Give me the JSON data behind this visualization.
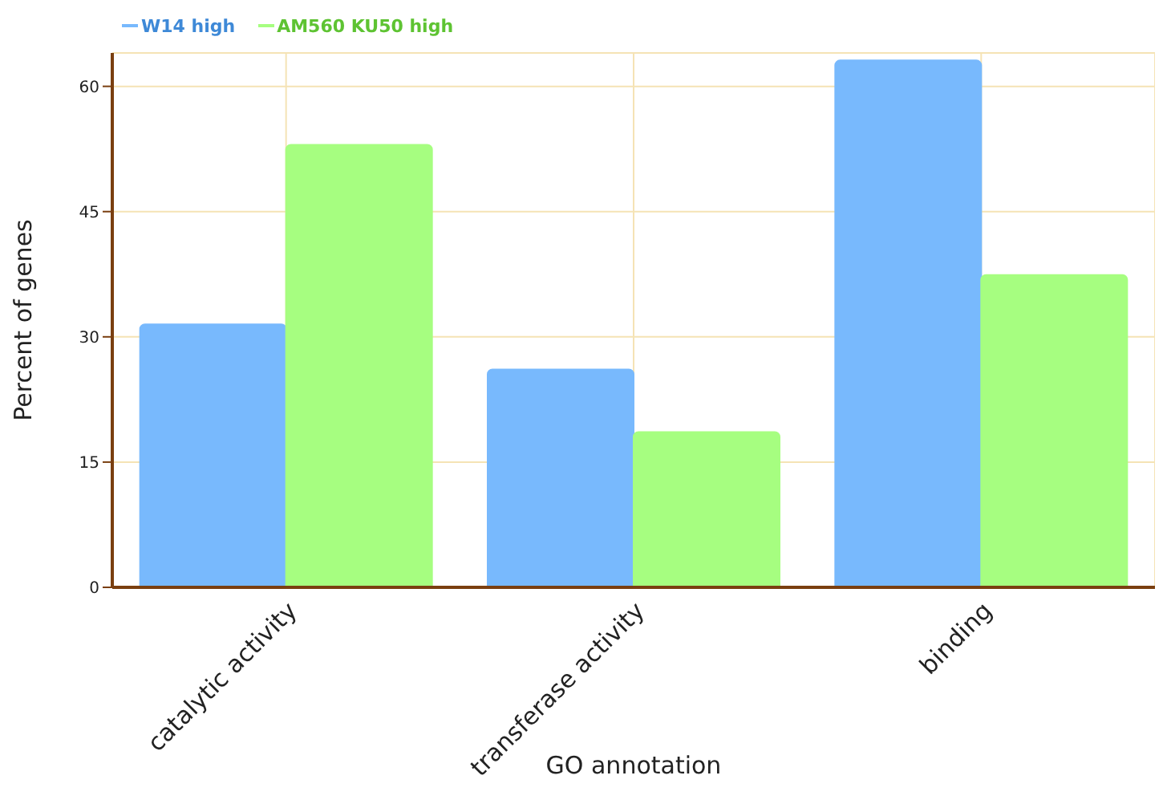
{
  "chart_data": {
    "type": "bar",
    "xlabel": "GO annotation",
    "ylabel": "Percent of genes",
    "categories": [
      "catalytic activity",
      "transferase activity",
      "binding"
    ],
    "series": [
      {
        "name": "W14 high",
        "color": "#78b9fd",
        "values": [
          31.5,
          26.1,
          63.1
        ]
      },
      {
        "name": "AM560 KU50 high",
        "color": "#a6fe80",
        "values": [
          53,
          18.6,
          37.4
        ]
      }
    ],
    "ylim": [
      0,
      64
    ],
    "yticks": [
      0,
      15,
      30,
      45,
      60
    ],
    "grid": true,
    "legend": "top left"
  }
}
